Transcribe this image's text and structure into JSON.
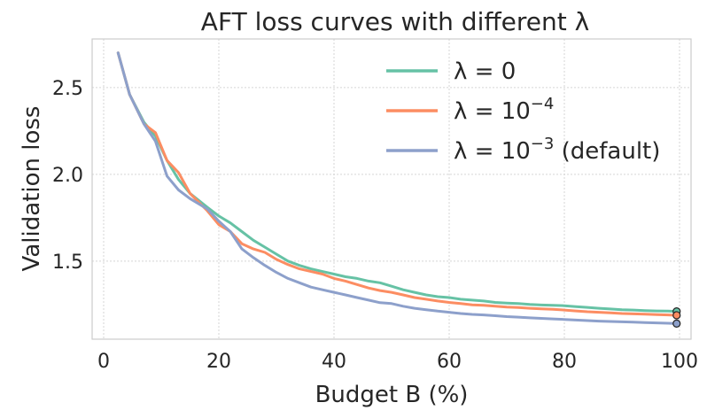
{
  "chart_data": {
    "type": "line",
    "title": "AFT loss curves with different λ",
    "xlabel": "Budget B (%)",
    "ylabel": "Validation loss",
    "xlim": [
      -2,
      102
    ],
    "ylim": [
      1.05,
      2.78
    ],
    "xticks": [
      0,
      20,
      40,
      60,
      80,
      100
    ],
    "yticks": [
      1.5,
      2.0,
      2.5
    ],
    "xtick_labels": [
      "0",
      "20",
      "40",
      "60",
      "80",
      "100"
    ],
    "ytick_labels": [
      "1.5",
      "2.0",
      "2.5"
    ],
    "grid": true,
    "legend_position": "top-right",
    "series": [
      {
        "name": "λ = 0",
        "legend": {
          "base": "λ = 0",
          "sup": "",
          "suffix": ""
        },
        "color": "#66c2a5",
        "x": [
          2.5,
          4.5,
          7,
          9,
          11,
          13,
          15,
          18,
          20,
          22,
          24,
          26,
          28,
          30,
          32,
          34,
          36,
          38,
          40,
          42,
          44,
          46,
          48,
          50,
          52,
          54,
          56,
          58,
          60,
          62,
          64,
          66,
          68,
          70,
          72,
          74,
          76,
          78,
          80,
          82,
          84,
          86,
          88,
          90,
          92,
          94,
          96,
          98,
          99.5
        ],
        "y": [
          2.7,
          2.46,
          2.3,
          2.22,
          2.08,
          1.97,
          1.89,
          1.81,
          1.76,
          1.72,
          1.67,
          1.62,
          1.58,
          1.54,
          1.5,
          1.475,
          1.455,
          1.44,
          1.425,
          1.41,
          1.4,
          1.385,
          1.375,
          1.355,
          1.335,
          1.32,
          1.305,
          1.295,
          1.29,
          1.28,
          1.275,
          1.27,
          1.262,
          1.258,
          1.255,
          1.25,
          1.247,
          1.245,
          1.243,
          1.238,
          1.233,
          1.228,
          1.224,
          1.22,
          1.218,
          1.215,
          1.213,
          1.212,
          1.21
        ]
      },
      {
        "name": "λ = 10^-4",
        "legend": {
          "base": "λ = 10",
          "sup": "−4",
          "suffix": ""
        },
        "color": "#fc8d62",
        "x": [
          2.5,
          4.5,
          7,
          9,
          11,
          13,
          15,
          18,
          20,
          22,
          24,
          26,
          28,
          30,
          32,
          34,
          36,
          38,
          40,
          42,
          44,
          46,
          48,
          50,
          52,
          54,
          56,
          58,
          60,
          62,
          64,
          66,
          68,
          70,
          72,
          74,
          76,
          78,
          80,
          82,
          84,
          86,
          88,
          90,
          92,
          94,
          96,
          98,
          99.5
        ],
        "y": [
          2.7,
          2.46,
          2.29,
          2.24,
          2.08,
          2.01,
          1.89,
          1.79,
          1.71,
          1.67,
          1.6,
          1.57,
          1.55,
          1.51,
          1.48,
          1.455,
          1.44,
          1.425,
          1.4,
          1.385,
          1.365,
          1.345,
          1.33,
          1.32,
          1.305,
          1.29,
          1.28,
          1.27,
          1.262,
          1.255,
          1.248,
          1.245,
          1.24,
          1.235,
          1.232,
          1.228,
          1.225,
          1.222,
          1.218,
          1.213,
          1.208,
          1.205,
          1.202,
          1.198,
          1.196,
          1.194,
          1.192,
          1.19,
          1.188
        ]
      },
      {
        "name": "λ = 10^-3 (default)",
        "legend": {
          "base": "λ = 10",
          "sup": "−3",
          "suffix": " (default)"
        },
        "color": "#8da0cb",
        "x": [
          2.5,
          4.5,
          7,
          9,
          11,
          13,
          15,
          18,
          20,
          22,
          24,
          26,
          28,
          30,
          32,
          34,
          36,
          38,
          40,
          42,
          44,
          46,
          48,
          50,
          52,
          54,
          56,
          58,
          60,
          62,
          64,
          66,
          68,
          70,
          72,
          74,
          76,
          78,
          80,
          82,
          84,
          86,
          88,
          90,
          92,
          94,
          96,
          98,
          99.5
        ],
        "y": [
          2.7,
          2.46,
          2.29,
          2.19,
          1.99,
          1.91,
          1.86,
          1.8,
          1.73,
          1.67,
          1.57,
          1.52,
          1.475,
          1.435,
          1.4,
          1.375,
          1.35,
          1.335,
          1.32,
          1.305,
          1.29,
          1.275,
          1.26,
          1.255,
          1.24,
          1.228,
          1.22,
          1.212,
          1.205,
          1.198,
          1.193,
          1.19,
          1.185,
          1.18,
          1.177,
          1.173,
          1.17,
          1.167,
          1.164,
          1.16,
          1.157,
          1.154,
          1.152,
          1.15,
          1.148,
          1.146,
          1.144,
          1.142,
          1.14
        ]
      }
    ]
  }
}
